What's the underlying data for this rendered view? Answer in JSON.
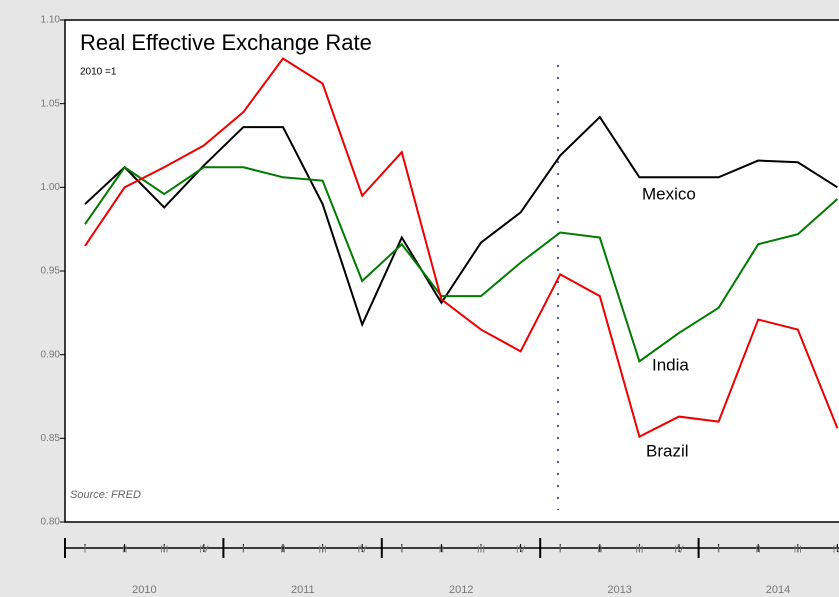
{
  "chart_data": {
    "type": "line",
    "title": "Real Effective Exchange Rate",
    "subtitle": "2010 =1",
    "source": "Source: FRED",
    "categories": [
      "I",
      "II",
      "III",
      "IV",
      "I",
      "II",
      "III",
      "IV",
      "I",
      "II",
      "III",
      "IV",
      "I",
      "II",
      "III",
      "IV",
      "I",
      "II",
      "III",
      "IV"
    ],
    "x_groups": [
      "2010",
      "2011",
      "2012",
      "2013",
      "2014"
    ],
    "ylim": [
      0.8,
      1.1
    ],
    "yticks": [
      {
        "value": 0.8,
        "label": "0.80"
      },
      {
        "value": 0.85,
        "label": "0.85"
      },
      {
        "value": 0.9,
        "label": "0.90"
      },
      {
        "value": 0.95,
        "label": "0.95"
      },
      {
        "value": 1.0,
        "label": "1.00"
      },
      {
        "value": 1.05,
        "label": "1.05"
      },
      {
        "value": 1.1,
        "label": "1.10"
      }
    ],
    "series": [
      {
        "name": "Mexico",
        "color": "#000000",
        "values": [
          0.99,
          1.012,
          0.988,
          1.013,
          1.036,
          1.036,
          0.99,
          0.918,
          0.97,
          0.931,
          0.967,
          0.985,
          1.019,
          1.042,
          1.006,
          1.006,
          1.006,
          1.016,
          1.015,
          1.0
        ]
      },
      {
        "name": "India",
        "color": "#007a00",
        "values": [
          0.978,
          1.012,
          0.996,
          1.012,
          1.012,
          1.006,
          1.004,
          0.944,
          0.966,
          0.935,
          0.935,
          0.955,
          0.973,
          0.97,
          0.896,
          0.913,
          0.928,
          0.966,
          0.972,
          0.993
        ]
      },
      {
        "name": "Brazil",
        "color": "#ee0000",
        "values": [
          0.965,
          1.0,
          1.012,
          1.025,
          1.045,
          1.077,
          1.062,
          0.995,
          1.021,
          0.933,
          0.915,
          0.902,
          0.948,
          0.935,
          0.851,
          0.863,
          0.86,
          0.921,
          0.915,
          0.856
        ]
      }
    ]
  }
}
